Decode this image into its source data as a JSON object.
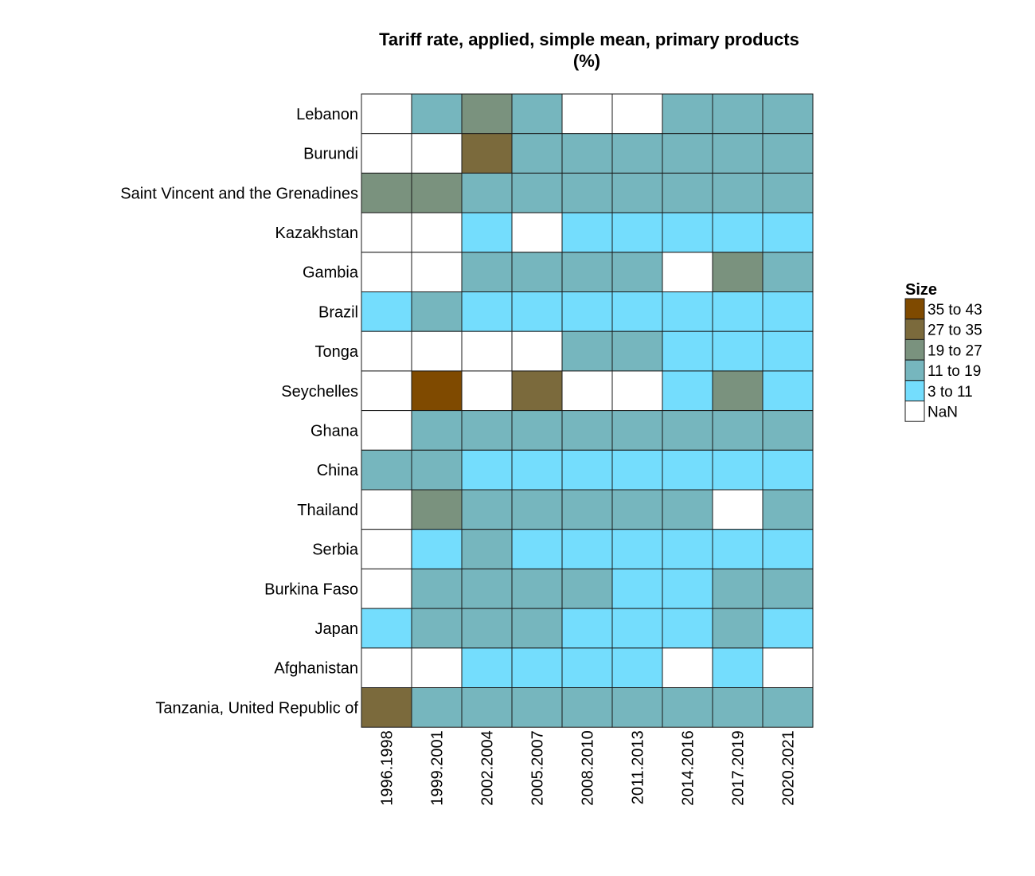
{
  "chart_data": {
    "type": "heatmap",
    "title": "Tariff rate, applied, simple mean, primary products",
    "subtitle": "(%)",
    "columns": [
      "1996.1998",
      "1999.2001",
      "2002.2004",
      "2005.2007",
      "2008.2010",
      "2011.2013",
      "2014.2016",
      "2017.2019",
      "2020.2021"
    ],
    "rows": [
      {
        "name": "Lebanon",
        "bins": [
          "NaN",
          "11 to 19",
          "19 to 27",
          "11 to 19",
          "NaN",
          "NaN",
          "11 to 19",
          "11 to 19",
          "11 to 19"
        ]
      },
      {
        "name": "Burundi",
        "bins": [
          "NaN",
          "NaN",
          "27 to 35",
          "11 to 19",
          "11 to 19",
          "11 to 19",
          "11 to 19",
          "11 to 19",
          "11 to 19"
        ]
      },
      {
        "name": "Saint Vincent and the Grenadines",
        "bins": [
          "19 to 27",
          "19 to 27",
          "11 to 19",
          "11 to 19",
          "11 to 19",
          "11 to 19",
          "11 to 19",
          "11 to 19",
          "11 to 19"
        ]
      },
      {
        "name": "Kazakhstan",
        "bins": [
          "NaN",
          "NaN",
          "3 to 11",
          "NaN",
          "3 to 11",
          "3 to 11",
          "3 to 11",
          "3 to 11",
          "3 to 11"
        ]
      },
      {
        "name": "Gambia",
        "bins": [
          "NaN",
          "NaN",
          "11 to 19",
          "11 to 19",
          "11 to 19",
          "11 to 19",
          "NaN",
          "19 to 27",
          "11 to 19"
        ]
      },
      {
        "name": "Brazil",
        "bins": [
          "3 to 11",
          "11 to 19",
          "3 to 11",
          "3 to 11",
          "3 to 11",
          "3 to 11",
          "3 to 11",
          "3 to 11",
          "3 to 11"
        ]
      },
      {
        "name": "Tonga",
        "bins": [
          "NaN",
          "NaN",
          "NaN",
          "NaN",
          "11 to 19",
          "11 to 19",
          "3 to 11",
          "3 to 11",
          "3 to 11"
        ]
      },
      {
        "name": "Seychelles",
        "bins": [
          "NaN",
          "35 to 43",
          "NaN",
          "27 to 35",
          "NaN",
          "NaN",
          "3 to 11",
          "19 to 27",
          "3 to 11"
        ]
      },
      {
        "name": "Ghana",
        "bins": [
          "NaN",
          "11 to 19",
          "11 to 19",
          "11 to 19",
          "11 to 19",
          "11 to 19",
          "11 to 19",
          "11 to 19",
          "11 to 19"
        ]
      },
      {
        "name": "China",
        "bins": [
          "11 to 19",
          "11 to 19",
          "3 to 11",
          "3 to 11",
          "3 to 11",
          "3 to 11",
          "3 to 11",
          "3 to 11",
          "3 to 11"
        ]
      },
      {
        "name": "Thailand",
        "bins": [
          "NaN",
          "19 to 27",
          "11 to 19",
          "11 to 19",
          "11 to 19",
          "11 to 19",
          "11 to 19",
          "NaN",
          "11 to 19"
        ]
      },
      {
        "name": "Serbia",
        "bins": [
          "NaN",
          "3 to 11",
          "11 to 19",
          "3 to 11",
          "3 to 11",
          "3 to 11",
          "3 to 11",
          "3 to 11",
          "3 to 11"
        ]
      },
      {
        "name": "Burkina Faso",
        "bins": [
          "NaN",
          "11 to 19",
          "11 to 19",
          "11 to 19",
          "11 to 19",
          "3 to 11",
          "3 to 11",
          "11 to 19",
          "11 to 19"
        ]
      },
      {
        "name": "Japan",
        "bins": [
          "3 to 11",
          "11 to 19",
          "11 to 19",
          "11 to 19",
          "3 to 11",
          "3 to 11",
          "3 to 11",
          "11 to 19",
          "3 to 11"
        ]
      },
      {
        "name": "Afghanistan",
        "bins": [
          "NaN",
          "NaN",
          "3 to 11",
          "3 to 11",
          "3 to 11",
          "3 to 11",
          "NaN",
          "3 to 11",
          "NaN"
        ]
      },
      {
        "name": "Tanzania, United Republic of",
        "bins": [
          "27 to 35",
          "11 to 19",
          "11 to 19",
          "11 to 19",
          "11 to 19",
          "11 to 19",
          "11 to 19",
          "11 to 19",
          "11 to 19"
        ]
      }
    ],
    "legend": {
      "title": "Size",
      "placement": "right",
      "items": [
        {
          "label": "35 to 43",
          "color": "#7f4a00"
        },
        {
          "label": "27 to 35",
          "color": "#7b6a3c"
        },
        {
          "label": "19 to 27",
          "color": "#7a927e"
        },
        {
          "label": "11 to 19",
          "color": "#76b6be"
        },
        {
          "label": "3 to 11",
          "color": "#74ddfd"
        },
        {
          "label": "NaN",
          "color": "#ffffff"
        }
      ]
    },
    "grid": true
  }
}
